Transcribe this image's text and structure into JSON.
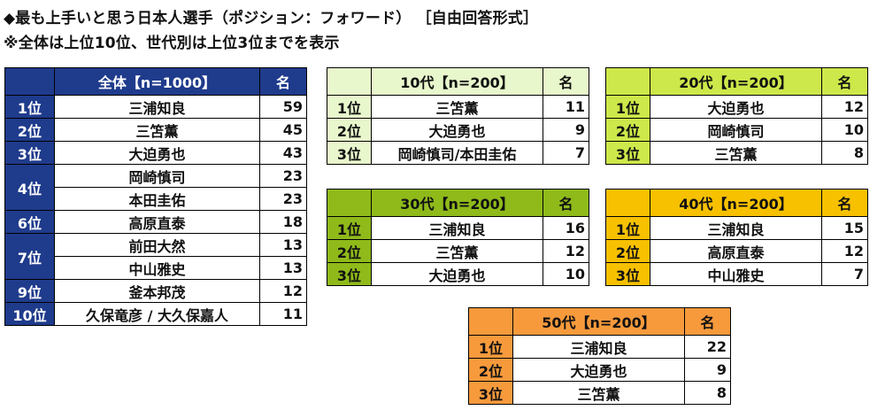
{
  "title_line1": "◆最も上手いと思う日本人選手（ポジション：フォワード） ［自由回答形式］",
  "title_line2": "※全体は上位10位、世代別は上位3位までを表示",
  "count_header": "名",
  "overall": {
    "header": "全体【n=1000】",
    "rows": [
      {
        "rank": "1位",
        "entries": [
          {
            "name": "三浦知良",
            "count": "59"
          }
        ]
      },
      {
        "rank": "2位",
        "entries": [
          {
            "name": "三笘薫",
            "count": "45"
          }
        ]
      },
      {
        "rank": "3位",
        "entries": [
          {
            "name": "大迫勇也",
            "count": "43"
          }
        ]
      },
      {
        "rank": "4位",
        "entries": [
          {
            "name": "岡崎慎司",
            "count": "23"
          },
          {
            "name": "本田圭佑",
            "count": "23"
          }
        ]
      },
      {
        "rank": "6位",
        "entries": [
          {
            "name": "高原直泰",
            "count": "18"
          }
        ]
      },
      {
        "rank": "7位",
        "entries": [
          {
            "name": "前田大然",
            "count": "13"
          },
          {
            "name": "中山雅史",
            "count": "13"
          }
        ]
      },
      {
        "rank": "9位",
        "entries": [
          {
            "name": "釜本邦茂",
            "count": "12"
          }
        ]
      },
      {
        "rank": "10位",
        "entries": [
          {
            "name": "久保竜彦 / 大久保嘉人",
            "count": "11"
          }
        ]
      }
    ]
  },
  "teens": {
    "header": "10代【n=200】",
    "rows": [
      {
        "rank": "1位",
        "name": "三笘薫",
        "count": "11"
      },
      {
        "rank": "2位",
        "name": "大迫勇也",
        "count": "9"
      },
      {
        "rank": "3位",
        "name": "岡崎慎司/本田圭佑",
        "count": "7"
      }
    ]
  },
  "twenties": {
    "header": "20代【n=200】",
    "rows": [
      {
        "rank": "1位",
        "name": "大迫勇也",
        "count": "12"
      },
      {
        "rank": "2位",
        "name": "岡崎慎司",
        "count": "10"
      },
      {
        "rank": "3位",
        "name": "三笘薫",
        "count": "8"
      }
    ]
  },
  "thirties": {
    "header": "30代【n=200】",
    "rows": [
      {
        "rank": "1位",
        "name": "三浦知良",
        "count": "16"
      },
      {
        "rank": "2位",
        "name": "三笘薫",
        "count": "12"
      },
      {
        "rank": "3位",
        "name": "大迫勇也",
        "count": "10"
      }
    ]
  },
  "forties": {
    "header": "40代【n=200】",
    "rows": [
      {
        "rank": "1位",
        "name": "三浦知良",
        "count": "15"
      },
      {
        "rank": "2位",
        "name": "高原直泰",
        "count": "12"
      },
      {
        "rank": "3位",
        "name": "中山雅史",
        "count": "7"
      }
    ]
  },
  "fifties": {
    "header": "50代【n=200】",
    "rows": [
      {
        "rank": "1位",
        "name": "三浦知良",
        "count": "22"
      },
      {
        "rank": "2位",
        "name": "大迫勇也",
        "count": "9"
      },
      {
        "rank": "3位",
        "name": "三笘薫",
        "count": "8"
      }
    ]
  },
  "colors": {
    "overall": "#1f3b8c",
    "teens": "#e8f7cc",
    "twenties": "#cde84a",
    "thirties": "#8fba1a",
    "forties": "#f7c100",
    "fifties": "#f79a3c"
  }
}
